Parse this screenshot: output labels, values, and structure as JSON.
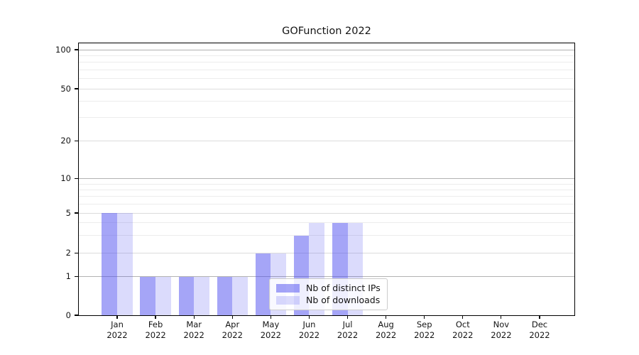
{
  "title": "GOFunction 2022",
  "chart_data": {
    "type": "bar",
    "title": "GOFunction 2022",
    "xlabel": "",
    "ylabel": "",
    "categories": [
      "Jan\n2022",
      "Feb\n2022",
      "Mar\n2022",
      "Apr\n2022",
      "May\n2022",
      "Jun\n2022",
      "Jul\n2022",
      "Aug\n2022",
      "Sep\n2022",
      "Oct\n2022",
      "Nov\n2022",
      "Dec\n2022"
    ],
    "series": [
      {
        "name": "Nb of distinct IPs",
        "color": "rgba(76,76,240,0.5)",
        "values": [
          5,
          1,
          1,
          1,
          2,
          3,
          4,
          0,
          0,
          0,
          0,
          0
        ]
      },
      {
        "name": "Nb of downloads",
        "color": "rgba(76,76,240,0.2)",
        "values": [
          5,
          1,
          1,
          1,
          2,
          4,
          4,
          0,
          0,
          0,
          0,
          0
        ]
      }
    ],
    "y_axis": {
      "scale": "log-like with 0 baseline",
      "range": [
        0,
        100
      ],
      "ticks": [
        100,
        50,
        20,
        10,
        5,
        2,
        1,
        0
      ],
      "decade_lines": [
        1,
        10,
        100
      ],
      "minor_gridlines": [
        3,
        4,
        6,
        7,
        8,
        9,
        30,
        40,
        60,
        70,
        80,
        90
      ]
    },
    "grid": true,
    "legend": {
      "position": "lower center",
      "entries": [
        "Nb of distinct IPs",
        "Nb of downloads"
      ]
    },
    "colors": {
      "bar_base": "#4c4cf0",
      "grid_decade": "#b2b2b2",
      "grid_mid": "#dcdcdc",
      "grid_minor": "#ececec"
    }
  }
}
